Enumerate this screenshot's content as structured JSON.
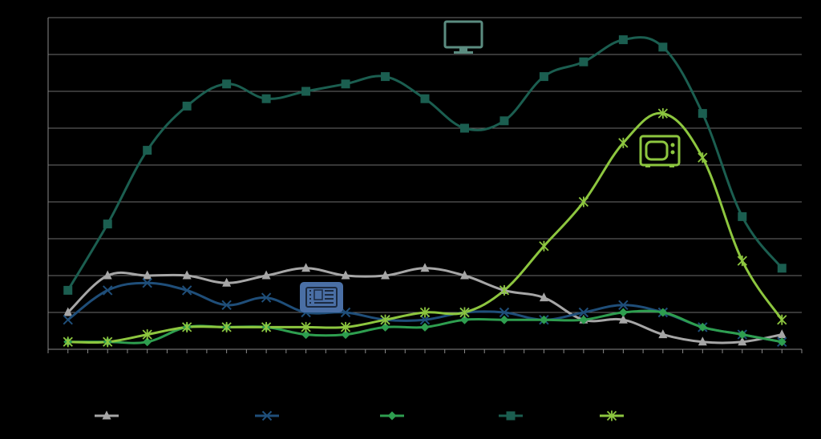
{
  "chart_data": {
    "type": "line",
    "title": "",
    "xlabel": "",
    "ylabel": "",
    "x": [
      1,
      2,
      3,
      4,
      5,
      6,
      7,
      8,
      9,
      10,
      11,
      12,
      13,
      14,
      15,
      16,
      17,
      18,
      19
    ],
    "ylim": [
      0,
      9
    ],
    "grid": true,
    "legend": "bottom",
    "series": [
      {
        "marker": "triangle",
        "color": "#a6a6a6",
        "values": [
          1.0,
          2.0,
          2.0,
          2.0,
          1.8,
          2.0,
          2.2,
          2.0,
          2.0,
          2.2,
          2.0,
          1.6,
          1.4,
          0.8,
          0.8,
          0.4,
          0.2,
          0.2,
          0.4
        ]
      },
      {
        "marker": "x",
        "color": "#1f4e79",
        "values": [
          0.8,
          1.6,
          1.8,
          1.6,
          1.2,
          1.4,
          1.0,
          1.0,
          0.8,
          0.8,
          1.0,
          1.0,
          0.8,
          1.0,
          1.2,
          1.0,
          0.6,
          0.4,
          0.2
        ]
      },
      {
        "marker": "diamond",
        "color": "#2e9e4f",
        "values": [
          0.2,
          0.2,
          0.2,
          0.6,
          0.6,
          0.6,
          0.4,
          0.4,
          0.6,
          0.6,
          0.8,
          0.8,
          0.8,
          0.8,
          1.0,
          1.0,
          0.6,
          0.4,
          0.2
        ]
      },
      {
        "marker": "square",
        "color": "#1b5e50",
        "values": [
          1.6,
          3.4,
          5.4,
          6.6,
          7.2,
          6.8,
          7.0,
          7.2,
          7.4,
          6.8,
          6.0,
          6.2,
          7.4,
          7.8,
          8.4,
          8.2,
          6.4,
          3.6,
          2.2
        ]
      },
      {
        "marker": "star",
        "color": "#8dc63f",
        "values": [
          0.2,
          0.2,
          0.4,
          0.6,
          0.6,
          0.6,
          0.6,
          0.6,
          0.8,
          1.0,
          1.0,
          1.6,
          2.8,
          4.0,
          5.6,
          6.4,
          5.2,
          2.4,
          0.8
        ]
      }
    ]
  },
  "icons": [
    {
      "name": "monitor-icon",
      "color": "#5b8c80"
    },
    {
      "name": "tv-icon",
      "color": "#8dc63f"
    },
    {
      "name": "tablet-icon",
      "color": "#4a6fa5"
    }
  ],
  "colors": {
    "background": "#000000",
    "grid": "#6e6e6e",
    "axis": "#8a8a8a"
  }
}
